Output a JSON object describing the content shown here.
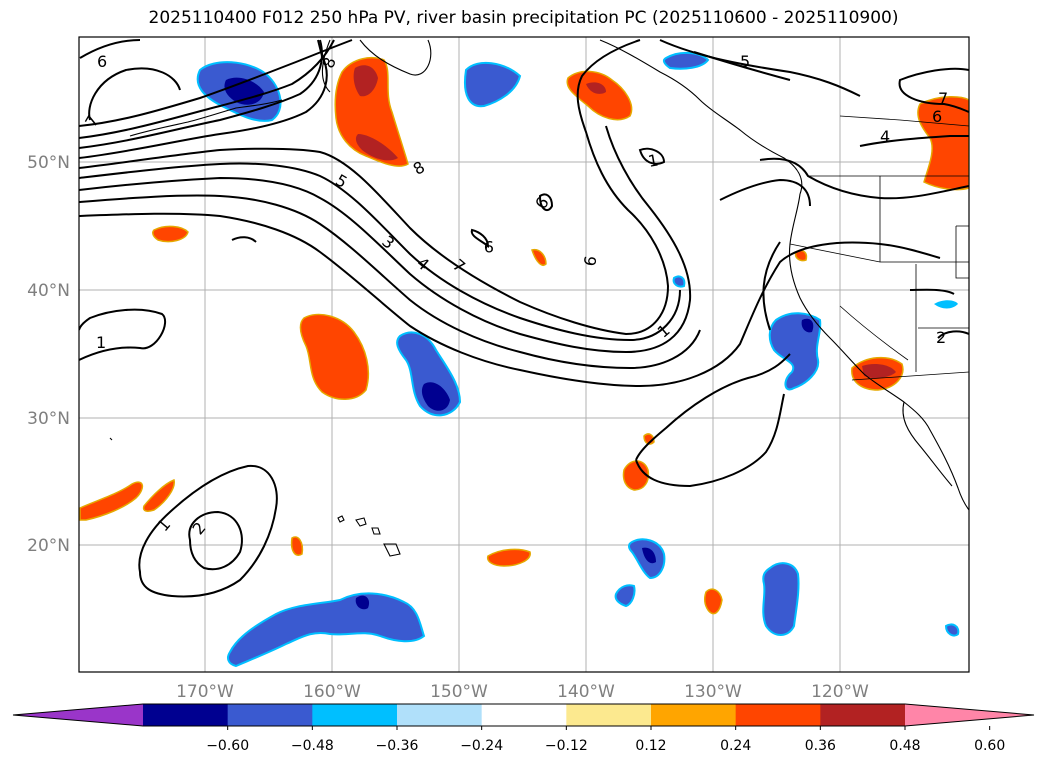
{
  "title": "2025110400 F012 250 hPa PV, river basin precipitation PC (2025110600 - 2025110900)",
  "map": {
    "lat_labels": [
      "50°N",
      "40°N",
      "30°N",
      "20°N"
    ],
    "lon_labels": [
      "170°W",
      "160°W",
      "150°W",
      "140°W",
      "130°W",
      "120°W"
    ],
    "gridlines": true
  },
  "contour_labels": [
    "6",
    "7",
    "8",
    "5",
    "3",
    "4",
    "7",
    "8",
    "9",
    "6",
    "6",
    "1",
    "5",
    "7",
    "6",
    "4",
    "1",
    "1",
    "2",
    "1",
    "2"
  ],
  "colorbar": {
    "ticks": [
      "−0.60",
      "−0.48",
      "−0.36",
      "−0.24",
      "−0.12",
      "0.12",
      "0.24",
      "0.36",
      "0.48",
      "0.60"
    ],
    "colors": [
      "#9a35c9",
      "#000090",
      "#3a5ad0",
      "#00bfff",
      "#b0e0fa",
      "#ffffff",
      "#fce98f",
      "#ffa500",
      "#ff4500",
      "#b22222",
      "#ff85a8"
    ],
    "extend": "both"
  }
}
